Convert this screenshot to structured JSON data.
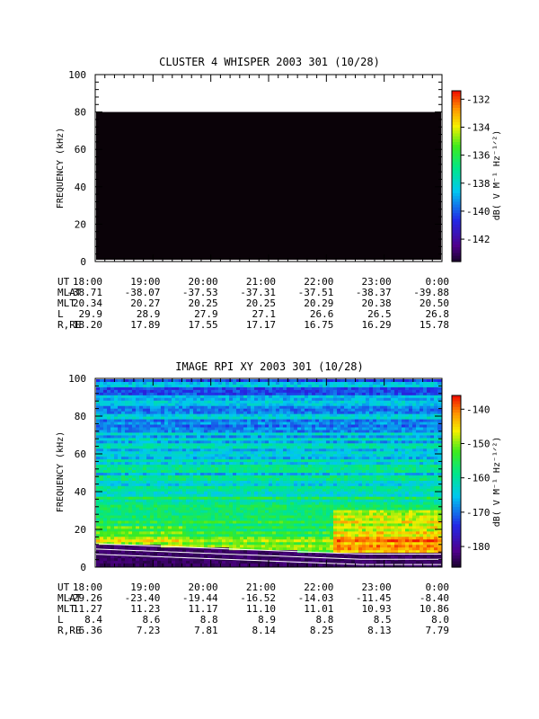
{
  "chart_data": [
    {
      "type": "heatmap",
      "title": "CLUSTER 4 WHISPER 2003 301 (10/28)",
      "ylabel": "FREQUENCY (kHz)",
      "ylim": [
        0,
        100
      ],
      "yticks": [
        "0",
        "20",
        "40",
        "60",
        "80",
        "100"
      ],
      "xticks": [
        "18:00",
        "19:00",
        "20:00",
        "21:00",
        "22:00",
        "23:00",
        "0:00"
      ],
      "xticks_num": [
        0,
        1,
        2,
        3,
        4,
        5,
        6
      ],
      "data_band": [
        0,
        80
      ],
      "colorbar": {
        "label": "dB( V M⁻¹ Hz⁻¹ᐟ²)",
        "range": [
          -143.6,
          -131.4
        ],
        "ticks": [
          "-132",
          "-134",
          "-136",
          "-138",
          "-140",
          "-142"
        ],
        "ticks_num": [
          -132,
          -134,
          -136,
          -138,
          -140,
          -142
        ]
      },
      "ephemeris": {
        "labels": [
          "UT",
          "MLAT",
          "MLT",
          "L",
          "R,RE"
        ],
        "rows": [
          [
            "18:00",
            "19:00",
            "20:00",
            "21:00",
            "22:00",
            "23:00",
            "0:00"
          ],
          [
            "-38.71",
            "-38.07",
            "-37.53",
            "-37.31",
            "-37.51",
            "-38.37",
            "-39.88"
          ],
          [
            "20.34",
            "20.27",
            "20.25",
            "20.25",
            "20.29",
            "20.38",
            "20.50"
          ],
          [
            "29.9",
            "28.9",
            "27.9",
            "27.1",
            "26.6",
            "26.5",
            "26.8"
          ],
          [
            "18.20",
            "17.89",
            "17.55",
            "17.17",
            "16.75",
            "16.29",
            "15.78"
          ]
        ]
      }
    },
    {
      "type": "heatmap",
      "title": "IMAGE RPI XY 2003 301 (10/28)",
      "ylabel": "FREQUENCY (kHz)",
      "ylim": [
        0,
        100
      ],
      "yticks": [
        "0",
        "20",
        "40",
        "60",
        "80",
        "100"
      ],
      "xticks": [
        "18:00",
        "19:00",
        "20:00",
        "21:00",
        "22:00",
        "23:00",
        "0:00"
      ],
      "xticks_num": [
        0,
        1,
        2,
        3,
        4,
        5,
        6
      ],
      "colorbar": {
        "label": "dB( V M⁻¹ Hz⁻¹ᐟ²)",
        "range": [
          -186,
          -136
        ],
        "ticks": [
          "-140",
          "-150",
          "-160",
          "-170",
          "-180"
        ],
        "ticks_num": [
          -140,
          -150,
          -160,
          -170,
          -180
        ]
      },
      "ephemeris": {
        "labels": [
          "UT",
          "MLAT",
          "MLT",
          "L",
          "R,RE"
        ],
        "rows": [
          [
            "18:00",
            "19:00",
            "20:00",
            "21:00",
            "22:00",
            "23:00",
            "0:00"
          ],
          [
            "-29.26",
            "-23.40",
            "-19.44",
            "-16.52",
            "-14.03",
            "-11.45",
            "-8.40"
          ],
          [
            "11.27",
            "11.23",
            "11.17",
            "11.10",
            "11.01",
            "10.93",
            "10.86"
          ],
          [
            "8.4",
            "8.6",
            "8.8",
            "8.9",
            "8.8",
            "8.5",
            "8.0"
          ],
          [
            "6.36",
            "7.23",
            "7.81",
            "8.14",
            "8.25",
            "8.13",
            "7.79"
          ]
        ]
      }
    }
  ]
}
